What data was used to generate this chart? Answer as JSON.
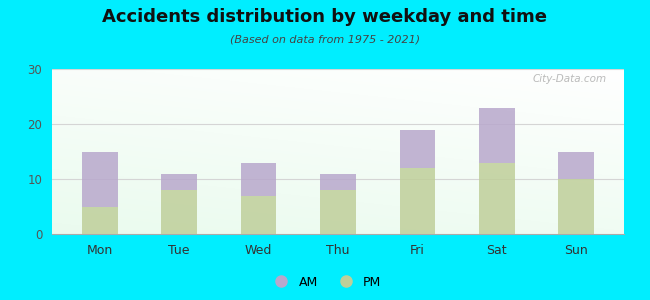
{
  "categories": [
    "Mon",
    "Tue",
    "Wed",
    "Thu",
    "Fri",
    "Sat",
    "Sun"
  ],
  "pm_values": [
    5,
    8,
    7,
    8,
    12,
    13,
    10
  ],
  "am_values": [
    10,
    3,
    6,
    3,
    7,
    10,
    5
  ],
  "am_color": "#b8a8cc",
  "pm_color": "#bfcf9a",
  "title": "Accidents distribution by weekday and time",
  "subtitle": "(Based on data from 1975 - 2021)",
  "ylim": [
    0,
    30
  ],
  "yticks": [
    0,
    10,
    20,
    30
  ],
  "background_outer": "#00eeff",
  "grid_color": "#e0e0e0",
  "watermark": "City-Data.com",
  "bar_width": 0.45
}
